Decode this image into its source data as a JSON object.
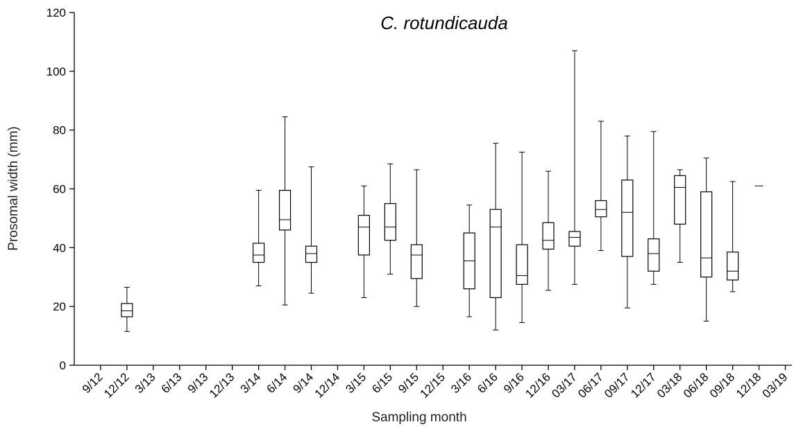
{
  "chart_data": {
    "type": "box",
    "title": "C. rotundicauda",
    "xlabel": "Sampling month",
    "ylabel": "Prosomal width (mm)",
    "ylim": [
      0,
      120
    ],
    "yticks": [
      0,
      20,
      40,
      60,
      80,
      100,
      120
    ],
    "grid": false,
    "legend": "none",
    "categories": [
      "9/12",
      "12/12",
      "3/13",
      "6/13",
      "9/13",
      "12/13",
      "3/14",
      "6/14",
      "9/14",
      "12/14",
      "3/15",
      "6/15",
      "9/15",
      "12/15",
      "3/16",
      "6/16",
      "9/16",
      "12/16",
      "03/17",
      "06/17",
      "09/17",
      "12/17",
      "03/18",
      "06/18",
      "09/18",
      "12/18",
      "03/19"
    ],
    "boxes": [
      {
        "category": "12/12",
        "min": 11.5,
        "q1": 16.5,
        "median": 18.5,
        "q3": 21,
        "max": 26.5
      },
      {
        "category": "3/14",
        "min": 27,
        "q1": 35,
        "median": 37.5,
        "q3": 41.5,
        "max": 59.5
      },
      {
        "category": "6/14",
        "min": 20.5,
        "q1": 46,
        "median": 49.5,
        "q3": 59.5,
        "max": 84.5
      },
      {
        "category": "9/14",
        "min": 24.5,
        "q1": 35,
        "median": 38,
        "q3": 40.5,
        "max": 67.5
      },
      {
        "category": "3/15",
        "min": 23,
        "q1": 37.5,
        "median": 47,
        "q3": 51,
        "max": 61
      },
      {
        "category": "6/15",
        "min": 31,
        "q1": 42.5,
        "median": 47,
        "q3": 55,
        "max": 68.5
      },
      {
        "category": "9/15",
        "min": 20,
        "q1": 29.5,
        "median": 37.5,
        "q3": 41,
        "max": 66.5
      },
      {
        "category": "3/16",
        "min": 16.5,
        "q1": 26,
        "median": 35.5,
        "q3": 45,
        "max": 54.5
      },
      {
        "category": "6/16",
        "min": 12,
        "q1": 23,
        "median": 47,
        "q3": 53,
        "max": 75.5
      },
      {
        "category": "9/16",
        "min": 14.5,
        "q1": 27.5,
        "median": 30.5,
        "q3": 41,
        "max": 72.5
      },
      {
        "category": "12/16",
        "min": 25.5,
        "q1": 39.5,
        "median": 42.5,
        "q3": 48.5,
        "max": 66
      },
      {
        "category": "03/17",
        "min": 27.5,
        "q1": 40.5,
        "median": 43.5,
        "q3": 45.5,
        "max": 107
      },
      {
        "category": "06/17",
        "min": 39,
        "q1": 50.5,
        "median": 53,
        "q3": 56,
        "max": 83
      },
      {
        "category": "09/17",
        "min": 19.5,
        "q1": 37,
        "median": 52,
        "q3": 63,
        "max": 78
      },
      {
        "category": "12/17",
        "min": 27.5,
        "q1": 32,
        "median": 38,
        "q3": 43,
        "max": 79.5
      },
      {
        "category": "03/18",
        "min": 35,
        "q1": 48,
        "median": 60.5,
        "q3": 64.5,
        "max": 66.5
      },
      {
        "category": "06/18",
        "min": 15,
        "q1": 30,
        "median": 36.5,
        "q3": 59,
        "max": 70.5
      },
      {
        "category": "09/18",
        "min": 25,
        "q1": 29,
        "median": 32,
        "q3": 38.5,
        "max": 62.5
      },
      {
        "category": "12/18",
        "min": 61,
        "q1": 61,
        "median": 61,
        "q3": 61,
        "max": 61
      }
    ]
  }
}
